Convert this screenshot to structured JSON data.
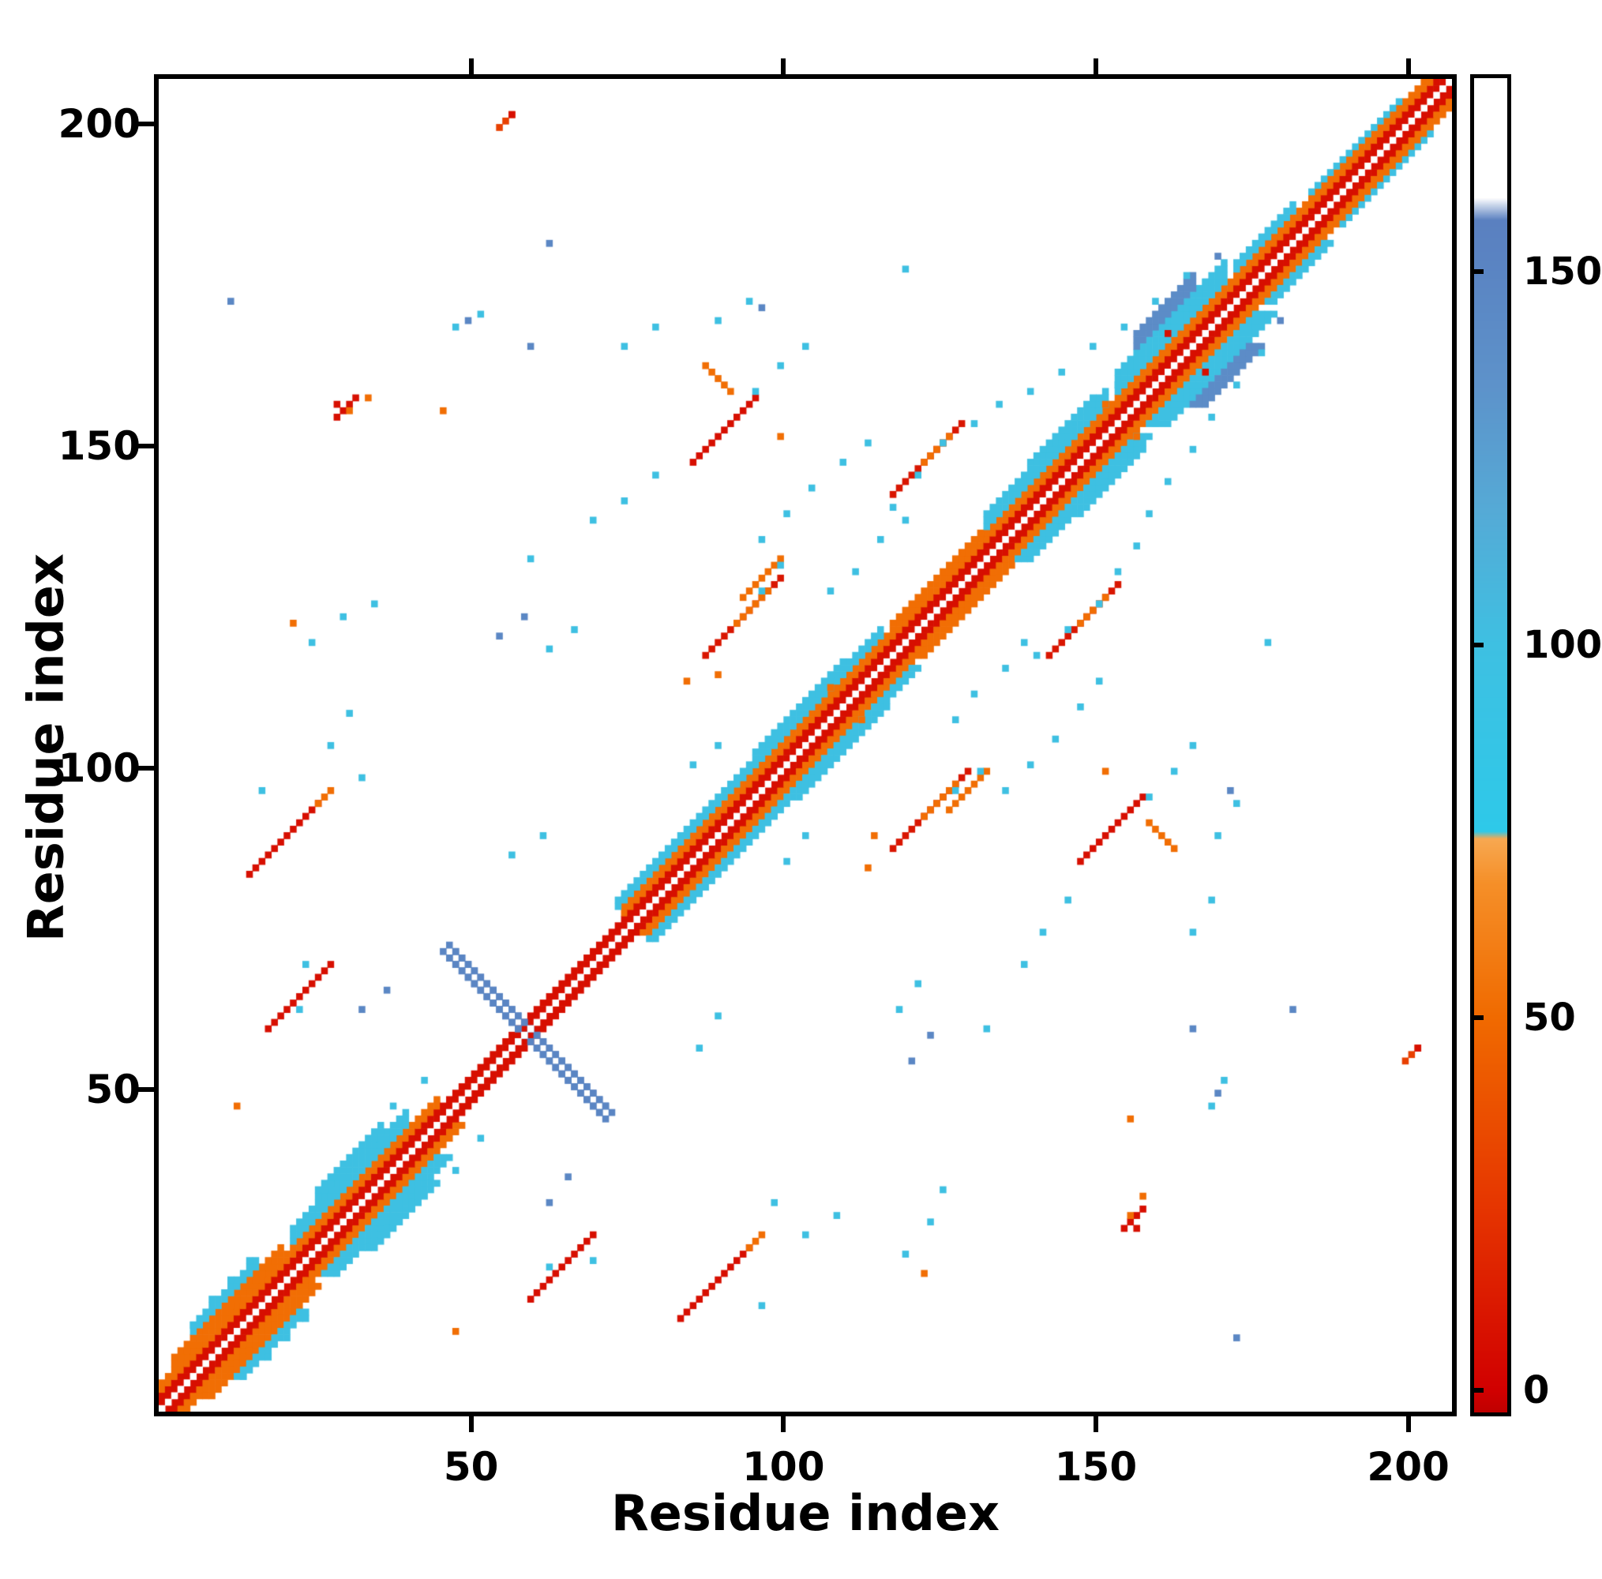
{
  "chart_data": {
    "type": "heatmap",
    "title": "",
    "xlabel": "Residue index",
    "ylabel": "Residue index",
    "x_range": [
      0,
      207
    ],
    "y_range": [
      0,
      207
    ],
    "x_ticks": [
      50,
      100,
      150,
      200
    ],
    "y_ticks": [
      50,
      100,
      150,
      200
    ],
    "grid": false,
    "legend": "none",
    "background_color": "#ffffff",
    "n_residues": 207,
    "symmetric": true,
    "description": "Protein residue-residue contact map, symmetric about the main diagonal. Cell color encodes a per-contact scalar (colorbar 0-150+) with a red-orange-cyan-blue-white colormap. Strong red/orange band along the main diagonal, one prominent blue anti-diagonal hairpin streak near residue 59, several red parallel contact segments off the diagonal, and scattered cyan/blue/orange single contacts.",
    "colorbar": {
      "position": "right",
      "ticks": [
        0,
        50,
        100,
        150
      ],
      "value_range": [
        -3,
        176
      ],
      "colormap_stops": [
        {
          "v": -3,
          "c": "#bf0000"
        },
        {
          "v": 0,
          "c": "#d10000"
        },
        {
          "v": 25,
          "c": "#e63600"
        },
        {
          "v": 50,
          "c": "#f06a00"
        },
        {
          "v": 68,
          "c": "#f58f28"
        },
        {
          "v": 74,
          "c": "#f7a851"
        },
        {
          "v": 75,
          "c": "#2ec9e9"
        },
        {
          "v": 100,
          "c": "#3ec0e2"
        },
        {
          "v": 118,
          "c": "#55aad6"
        },
        {
          "v": 135,
          "c": "#5d92ca"
        },
        {
          "v": 152,
          "c": "#5a83c2"
        },
        {
          "v": 157,
          "c": "#5a80c0"
        },
        {
          "v": 160,
          "c": "#ffffff"
        },
        {
          "v": 176,
          "c": "#ffffff"
        }
      ]
    },
    "diagonal_band": {
      "white_diagonal": true,
      "red_value": 7,
      "red_offsets": [
        1,
        2
      ],
      "orange_value": 52,
      "orange_offsets": [
        3,
        4
      ],
      "orange_gap_ranges": [
        [
          46,
          74
        ]
      ]
    },
    "near_diagonal_bands": [
      {
        "from": 3,
        "to": 20,
        "offsets": [
          5,
          6
        ],
        "value": 52
      },
      {
        "from": 6,
        "to": 16,
        "offsets": [
          7,
          8
        ],
        "value": 100
      },
      {
        "from": 22,
        "to": 40,
        "offsets": [
          5,
          6,
          7
        ],
        "value": 100
      },
      {
        "from": 26,
        "to": 36,
        "offsets": [
          8,
          9
        ],
        "value": 100
      },
      {
        "from": 74,
        "to": 116,
        "offsets": [
          5,
          6
        ],
        "value": 100
      },
      {
        "from": 96,
        "to": 110,
        "offsets": [
          7
        ],
        "value": 100
      },
      {
        "from": 118,
        "to": 132,
        "offsets": [
          5
        ],
        "value": 52
      },
      {
        "from": 133,
        "to": 152,
        "offsets": [
          5,
          6,
          7
        ],
        "value": 100
      },
      {
        "from": 140,
        "to": 150,
        "offsets": [
          8
        ],
        "value": 100
      },
      {
        "from": 154,
        "to": 171,
        "offsets": [
          5,
          6,
          7,
          8
        ],
        "value": 100
      },
      {
        "from": 157,
        "to": 166,
        "offsets": [
          9,
          10,
          11
        ],
        "value": 142
      },
      {
        "from": 173,
        "to": 182,
        "offsets": [
          5,
          6
        ],
        "value": 100
      },
      {
        "from": 185,
        "to": 199,
        "offsets": [
          5
        ],
        "value": 100
      }
    ],
    "antidiagonal_streaks": [
      {
        "i": 47,
        "j": 71,
        "len": 25,
        "value": 150,
        "thickness": 2
      }
    ],
    "contact_segments": [
      {
        "i": 18,
        "j": 60,
        "len": 11,
        "value": 7,
        "dir": 1
      },
      {
        "i": 15,
        "j": 84,
        "len": 12,
        "value": 7,
        "dir": 1
      },
      {
        "i": 26,
        "j": 95,
        "len": 3,
        "value": 52,
        "dir": 1
      },
      {
        "i": 88,
        "j": 118,
        "len": 13,
        "value": 10,
        "dir": 1
      },
      {
        "i": 93,
        "j": 123,
        "len": 6,
        "value": 52,
        "dir": 1
      },
      {
        "i": 118,
        "j": 143,
        "len": 12,
        "value": 10,
        "dir": 1
      },
      {
        "i": 123,
        "j": 148,
        "len": 5,
        "value": 52,
        "dir": 1
      },
      {
        "i": 86,
        "j": 148,
        "len": 11,
        "value": 7,
        "dir": 1
      },
      {
        "i": 94,
        "j": 127,
        "len": 7,
        "value": 52,
        "dir": 1
      },
      {
        "i": 88,
        "j": 163,
        "len": 5,
        "value": 52,
        "dir": -1
      },
      {
        "i": 29,
        "j": 155,
        "len": 4,
        "value": 7,
        "dir": 1
      },
      {
        "i": 55,
        "j": 200,
        "len": 3,
        "value": 30,
        "dir": 1
      }
    ],
    "contact_points": {
      "values": {
        "red": 7,
        "orange": 52,
        "cyan": 100,
        "blue": 148
      },
      "red": [
        [
          29,
          157
        ],
        [
          57,
          202
        ],
        [
          162,
          168
        ]
      ],
      "orange": [
        [
          22,
          123
        ],
        [
          31,
          156
        ],
        [
          85,
          114
        ],
        [
          108,
          113
        ],
        [
          152,
          157
        ],
        [
          46,
          156
        ],
        [
          13,
          48
        ],
        [
          100,
          152
        ],
        [
          34,
          158
        ],
        [
          90,
          115
        ]
      ],
      "cyan": [
        [
          6,
          14
        ],
        [
          9,
          18
        ],
        [
          12,
          21
        ],
        [
          15,
          24
        ],
        [
          17,
          97
        ],
        [
          33,
          99
        ],
        [
          24,
          70
        ],
        [
          28,
          104
        ],
        [
          31,
          109
        ],
        [
          25,
          120
        ],
        [
          30,
          124
        ],
        [
          35,
          126
        ],
        [
          43,
          52
        ],
        [
          38,
          48
        ],
        [
          57,
          87
        ],
        [
          62,
          90
        ],
        [
          60,
          133
        ],
        [
          70,
          139
        ],
        [
          75,
          142
        ],
        [
          80,
          146
        ],
        [
          86,
          101
        ],
        [
          90,
          104
        ],
        [
          97,
          136
        ],
        [
          101,
          140
        ],
        [
          105,
          144
        ],
        [
          110,
          148
        ],
        [
          114,
          151
        ],
        [
          118,
          141
        ],
        [
          122,
          146
        ],
        [
          126,
          151
        ],
        [
          131,
          154
        ],
        [
          135,
          157
        ],
        [
          96,
          159
        ],
        [
          100,
          163
        ],
        [
          104,
          166
        ],
        [
          48,
          169
        ],
        [
          52,
          171
        ],
        [
          75,
          166
        ],
        [
          80,
          169
        ],
        [
          90,
          170
        ],
        [
          95,
          173
        ],
        [
          108,
          128
        ],
        [
          112,
          131
        ],
        [
          116,
          136
        ],
        [
          120,
          139
        ],
        [
          140,
          159
        ],
        [
          145,
          162
        ],
        [
          150,
          166
        ],
        [
          155,
          169
        ],
        [
          160,
          173
        ],
        [
          165,
          177
        ],
        [
          120,
          178
        ],
        [
          128,
          97
        ],
        [
          132,
          100
        ],
        [
          154,
          160
        ],
        [
          168,
          176
        ],
        [
          63,
          119
        ],
        [
          67,
          122
        ],
        [
          23,
          63
        ]
      ],
      "blue": [
        [
          12,
          173
        ],
        [
          50,
          170
        ],
        [
          97,
          172
        ],
        [
          60,
          166
        ],
        [
          55,
          121
        ],
        [
          59,
          124
        ],
        [
          33,
          63
        ],
        [
          37,
          66
        ],
        [
          63,
          182
        ],
        [
          170,
          180
        ]
      ]
    }
  }
}
